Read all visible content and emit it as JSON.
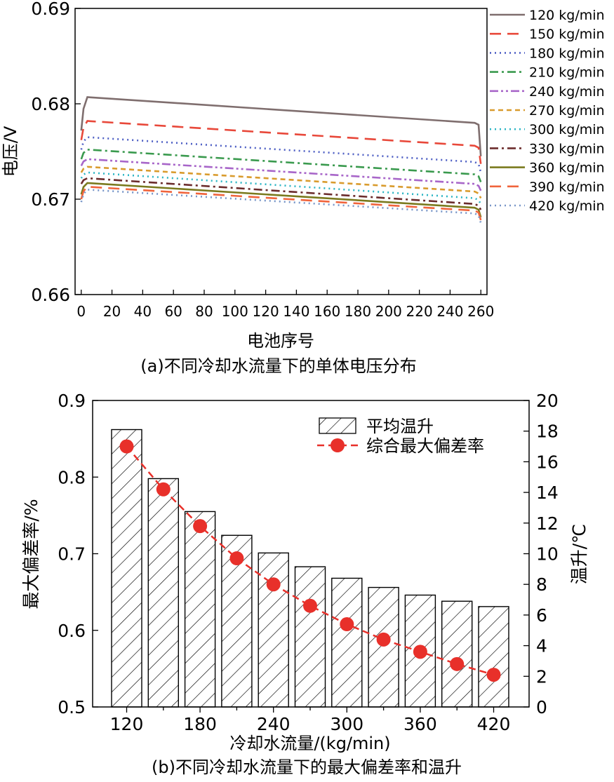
{
  "chart_data": [
    {
      "id": "a",
      "type": "line",
      "caption": "(a)不同冷却水流量下的单体电压分布",
      "xlabel": "电池序号",
      "ylabel": "电压/V",
      "xlim": [
        -4,
        264
      ],
      "ylim": [
        0.66,
        0.69
      ],
      "xticks": [
        0,
        20,
        40,
        60,
        80,
        100,
        120,
        140,
        160,
        180,
        200,
        220,
        240,
        260
      ],
      "yticks": [
        0.66,
        0.67,
        0.68,
        0.69
      ],
      "ytick_labels": [
        "0.66",
        "0.67",
        "0.68",
        "0.69"
      ],
      "series": [
        {
          "name": "120 kg/min",
          "color": "#7f6e6e",
          "dash": "solid",
          "start": 0.6772,
          "peak": 0.6807,
          "end_plateau": 0.678,
          "end": 0.6745
        },
        {
          "name": "150 kg/min",
          "color": "#e8483a",
          "dash": "long-dash",
          "start": 0.6762,
          "peak": 0.6782,
          "end_plateau": 0.6756,
          "end": 0.6737
        },
        {
          "name": "180 kg/min",
          "color": "#4e5fc4",
          "dash": "dot",
          "start": 0.6752,
          "peak": 0.6765,
          "end_plateau": 0.6739,
          "end": 0.6728
        },
        {
          "name": "210 kg/min",
          "color": "#3a9a4e",
          "dash": "dash-dot",
          "start": 0.6742,
          "peak": 0.6752,
          "end_plateau": 0.6726,
          "end": 0.6718
        },
        {
          "name": "240 kg/min",
          "color": "#a866c9",
          "dash": "dash-dot-dot",
          "start": 0.6735,
          "peak": 0.6742,
          "end_plateau": 0.6716,
          "end": 0.6709
        },
        {
          "name": "270 kg/min",
          "color": "#d99b2d",
          "dash": "short-dash",
          "start": 0.6728,
          "peak": 0.6734,
          "end_plateau": 0.6708,
          "end": 0.6701
        },
        {
          "name": "300 kg/min",
          "color": "#2cb5c4",
          "dash": "dot",
          "start": 0.6722,
          "peak": 0.6728,
          "end_plateau": 0.6701,
          "end": 0.6695
        },
        {
          "name": "330 kg/min",
          "color": "#6b2c2c",
          "dash": "dash-dot",
          "start": 0.6716,
          "peak": 0.6722,
          "end_plateau": 0.6695,
          "end": 0.6689
        },
        {
          "name": "360 kg/min",
          "color": "#7a7a1e",
          "dash": "solid",
          "start": 0.6705,
          "peak": 0.6717,
          "end_plateau": 0.6691,
          "end": 0.6681
        },
        {
          "name": "390 kg/min",
          "color": "#f0643c",
          "dash": "long-dash",
          "start": 0.67,
          "peak": 0.6713,
          "end_plateau": 0.6688,
          "end": 0.6678
        },
        {
          "name": "420 kg/min",
          "color": "#7896c8",
          "dash": "dot",
          "start": 0.6697,
          "peak": 0.671,
          "end_plateau": 0.6685,
          "end": 0.6675
        }
      ]
    },
    {
      "id": "b",
      "type": "bar",
      "caption": "(b)不同冷却水流量下的最大偏差率和温升",
      "xlabel": "冷却水流量/(kg/min)",
      "ylabel_left": "最大偏差率/%",
      "ylabel_right": "温升/℃",
      "categories": [
        "120",
        "150",
        "180",
        "210",
        "240",
        "270",
        "300",
        "330",
        "360",
        "390",
        "420"
      ],
      "xtick_labels": [
        "120",
        "180",
        "240",
        "300",
        "360",
        "420"
      ],
      "ylim_left": [
        0.5,
        0.9
      ],
      "ylim_right": [
        0,
        20
      ],
      "yticks_left": [
        "0.5",
        "0.6",
        "0.7",
        "0.8",
        "0.9"
      ],
      "yticks_right": [
        "0",
        "2",
        "4",
        "6",
        "8",
        "10",
        "12",
        "14",
        "16",
        "18",
        "20"
      ],
      "series": [
        {
          "name": "平均温升",
          "type": "bar",
          "axis": "left",
          "pattern": "hatch",
          "values": [
            0.862,
            0.798,
            0.755,
            0.724,
            0.701,
            0.683,
            0.668,
            0.656,
            0.646,
            0.638,
            0.631
          ]
        },
        {
          "name": "综合最大偏差率",
          "type": "line+marker",
          "axis": "right",
          "color": "#e8302a",
          "values": [
            17.0,
            14.2,
            11.8,
            9.7,
            8.0,
            6.6,
            5.4,
            4.4,
            3.6,
            2.8,
            2.1
          ]
        }
      ]
    }
  ]
}
